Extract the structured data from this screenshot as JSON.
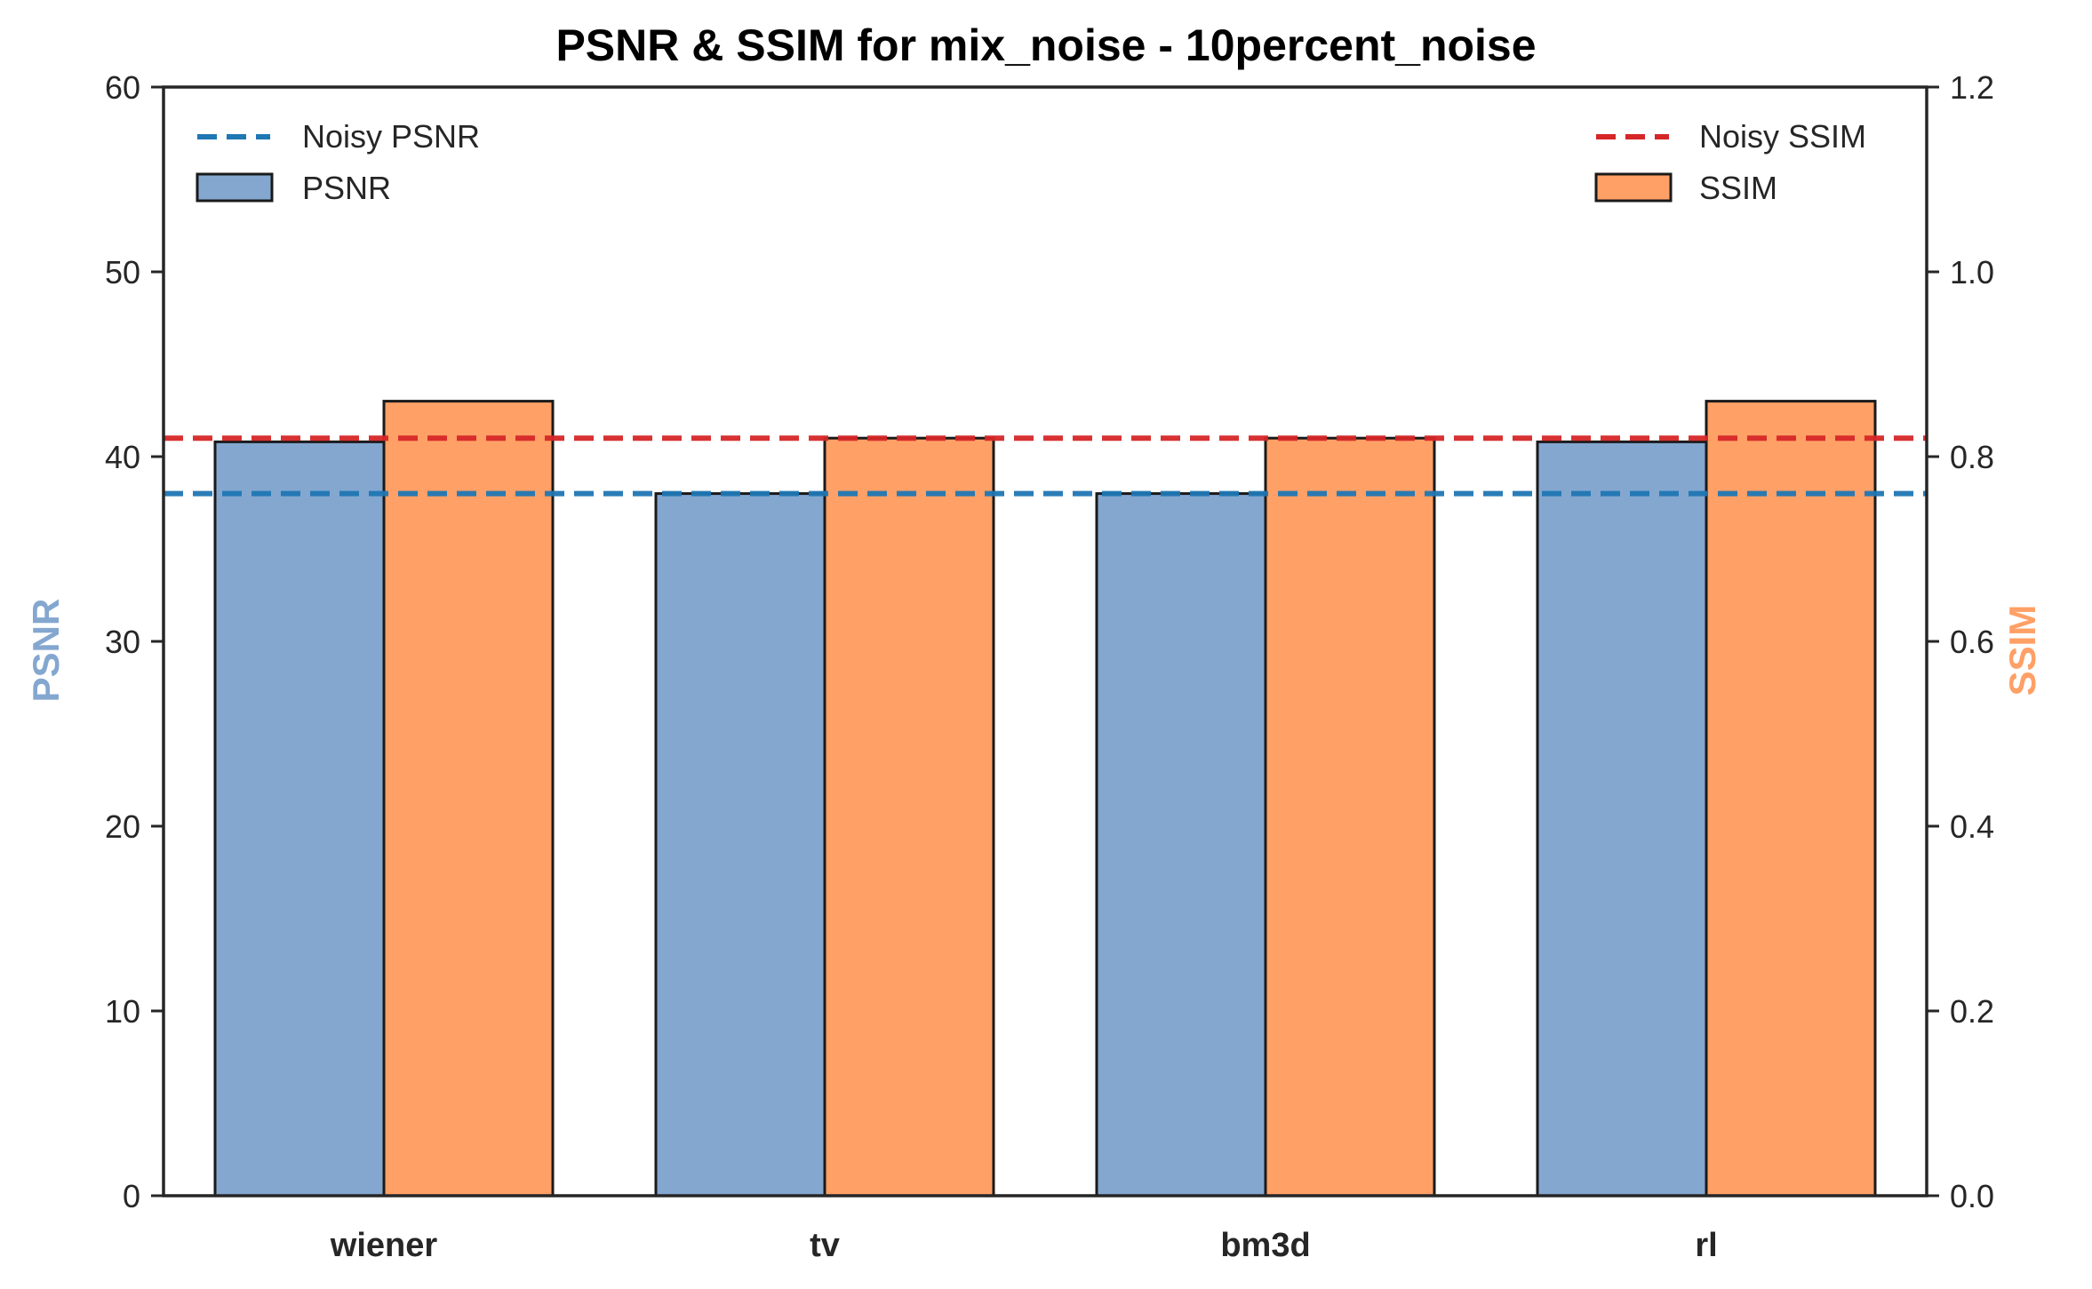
{
  "chart_data": {
    "type": "bar",
    "title": "PSNR & SSIM for mix_noise - 10percent_noise",
    "categories": [
      "wiener",
      "tv",
      "bm3d",
      "rl"
    ],
    "series": [
      {
        "name": "PSNR",
        "axis": "left",
        "color": "#84a7d0",
        "values": [
          40.8,
          38.0,
          38.0,
          40.8
        ]
      },
      {
        "name": "SSIM",
        "axis": "right",
        "color": "#ffa066",
        "values": [
          0.86,
          0.82,
          0.82,
          0.86
        ]
      }
    ],
    "reference_lines": [
      {
        "name": "Noisy PSNR",
        "axis": "left",
        "value": 38.0,
        "color": "#1f77b4",
        "style": "dashed"
      },
      {
        "name": "Noisy SSIM",
        "axis": "right",
        "value": 0.82,
        "color": "#d62728",
        "style": "dashed"
      }
    ],
    "ylabel_left": "PSNR",
    "ylabel_right": "SSIM",
    "ylim_left": [
      0,
      60
    ],
    "ylim_right": [
      0,
      1.2
    ],
    "yticks_left": [
      "0",
      "10",
      "20",
      "30",
      "40",
      "50",
      "60"
    ],
    "yticks_right": [
      "0.0",
      "0.2",
      "0.4",
      "0.6",
      "0.8",
      "1.0",
      "1.2"
    ],
    "ylabel_left_color": "#84a7d0",
    "ylabel_right_color": "#ffa066",
    "grid": false,
    "legend_left_placement": "top-left",
    "legend_right_placement": "top-right"
  }
}
